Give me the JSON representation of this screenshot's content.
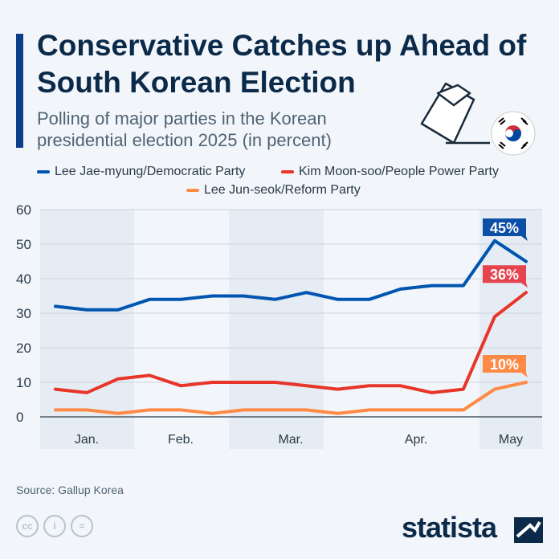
{
  "header": {
    "title": "Conservative Catches up Ahead of South Korean Election",
    "subtitle": "Polling of major parties in the Korean presidential election 2025 (in percent)"
  },
  "icons": {
    "ballot": "ballot-box-hand-icon",
    "flag": "south-korea-flag-icon"
  },
  "footer": {
    "source": "Source: Gallup Korea",
    "brand": "statista",
    "license_icons": [
      "cc-icon",
      "attribution-icon",
      "no-derivatives-icon"
    ]
  },
  "chart_data": {
    "type": "line",
    "ylim": [
      0,
      60
    ],
    "yticks": [
      "0",
      "10",
      "20",
      "30",
      "40",
      "50",
      "60"
    ],
    "month_labels": [
      "Jan.",
      "Feb.",
      "Mar.",
      "Apr.",
      "May"
    ],
    "grid": true,
    "legend_placement": "top",
    "series": [
      {
        "name": "Lee Jae-myung/Democratic Party",
        "color": "#0055b0",
        "values": [
          32,
          31,
          31,
          34,
          34,
          35,
          35,
          34,
          36,
          34,
          34,
          37,
          38,
          38,
          51,
          45
        ],
        "end_label": "45%",
        "label_color": "#0b4fa6"
      },
      {
        "name": "Kim Moon-soo/People Power Party",
        "color": "#e8352a",
        "values": [
          8,
          7,
          11,
          12,
          9,
          10,
          10,
          10,
          9,
          8,
          9,
          9,
          7,
          8,
          29,
          36
        ],
        "end_label": "36%",
        "label_color": "#e5434f"
      },
      {
        "name": "Lee Jun-seok/Reform Party",
        "color": "#ff8a45",
        "values": [
          2,
          2,
          1,
          2,
          2,
          1,
          2,
          2,
          2,
          1,
          2,
          2,
          2,
          2,
          8,
          10
        ],
        "end_label": "10%",
        "label_color": "#ff8a45"
      }
    ]
  }
}
